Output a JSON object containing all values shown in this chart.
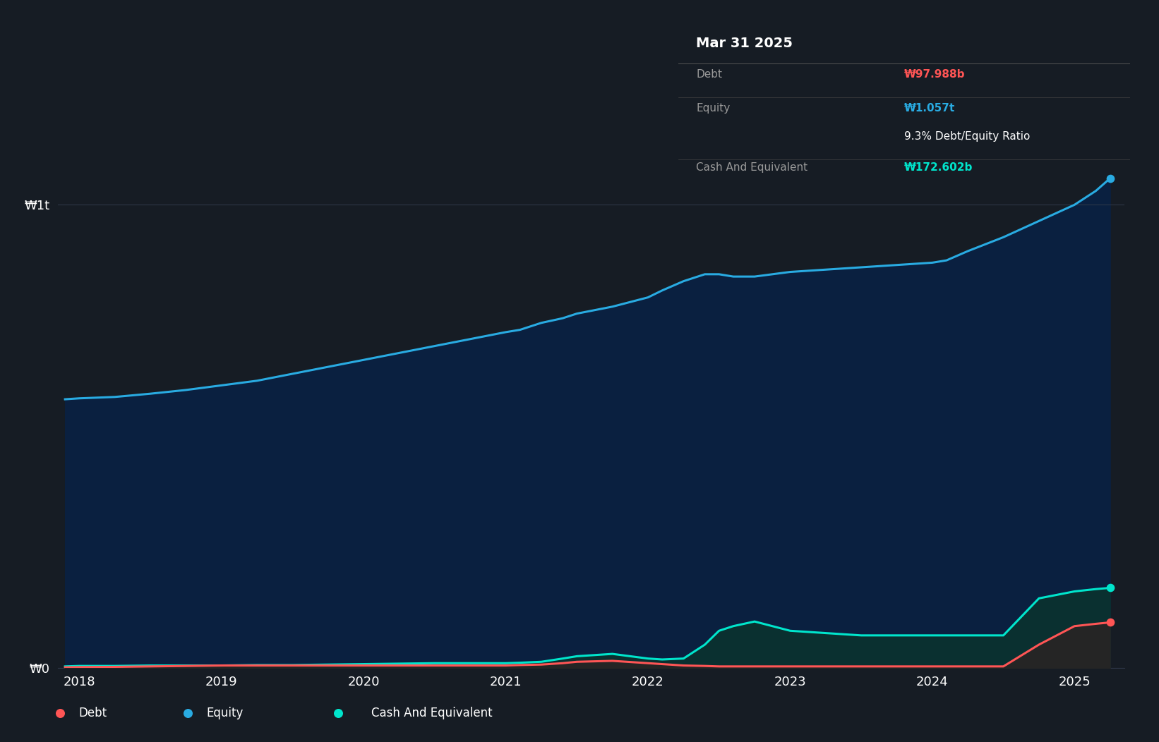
{
  "bg_color": "#161c24",
  "plot_bg_color": "#161c24",
  "tooltip_bg": "#000000",
  "grid_color": "#2d3748",
  "title_tooltip": "Mar 31 2025",
  "debt_label": "Debt",
  "equity_label": "Equity",
  "cash_label": "Cash And Equivalent",
  "debt_value": "₩97.988b",
  "equity_value": "₩1.057t",
  "ratio_text": "9.3% Debt/Equity Ratio",
  "cash_value": "₩172.602b",
  "debt_color": "#ff5555",
  "equity_color": "#29abe2",
  "cash_color": "#00e5cc",
  "equity_fill_color": "#0a2040",
  "cash_fill_color": "#0a3030",
  "debt_fill_color": "#252525",
  "ytick_labels": [
    "₩1t",
    "₩0"
  ],
  "xtick_labels": [
    "2018",
    "2019",
    "2020",
    "2021",
    "2022",
    "2023",
    "2024",
    "2025"
  ],
  "legend_label_debt": "Debt",
  "legend_label_equity": "Equity",
  "legend_label_cash": "Cash And Equivalent",
  "x_years": [
    2017.9,
    2018.0,
    2018.25,
    2018.5,
    2018.75,
    2019.0,
    2019.25,
    2019.5,
    2019.75,
    2020.0,
    2020.25,
    2020.5,
    2020.75,
    2021.0,
    2021.1,
    2021.25,
    2021.4,
    2021.5,
    2021.75,
    2022.0,
    2022.1,
    2022.25,
    2022.4,
    2022.5,
    2022.6,
    2022.75,
    2023.0,
    2023.25,
    2023.5,
    2023.75,
    2024.0,
    2024.1,
    2024.25,
    2024.5,
    2024.75,
    2025.0,
    2025.15,
    2025.25
  ],
  "equity_values": [
    580000000000.0,
    582000000000.0,
    585000000000.0,
    592000000000.0,
    600000000000.0,
    610000000000.0,
    620000000000.0,
    635000000000.0,
    650000000000.0,
    665000000000.0,
    680000000000.0,
    695000000000.0,
    710000000000.0,
    725000000000.0,
    730000000000.0,
    745000000000.0,
    755000000000.0,
    765000000000.0,
    780000000000.0,
    800000000000.0,
    815000000000.0,
    835000000000.0,
    850000000000.0,
    850000000000.0,
    845000000000.0,
    845000000000.0,
    855000000000.0,
    860000000000.0,
    865000000000.0,
    870000000000.0,
    875000000000.0,
    880000000000.0,
    900000000000.0,
    930000000000.0,
    965000000000.0,
    1000000000000.0,
    1030000000000.0,
    1057000000000.0
  ],
  "debt_values": [
    1000000000.0,
    1500000000.0,
    2000000000.0,
    3000000000.0,
    4000000000.0,
    5000000000.0,
    5000000000.0,
    5000000000.0,
    5000000000.0,
    5000000000.0,
    5000000000.0,
    5000000000.0,
    5000000000.0,
    5000000000.0,
    6000000000.0,
    7000000000.0,
    10000000000.0,
    13000000000.0,
    15000000000.0,
    10000000000.0,
    8000000000.0,
    5000000000.0,
    4000000000.0,
    3000000000.0,
    3000000000.0,
    3000000000.0,
    3000000000.0,
    3000000000.0,
    3000000000.0,
    3000000000.0,
    3000000000.0,
    3000000000.0,
    3000000000.0,
    3000000000.0,
    50000000000.0,
    90000000000.0,
    95000000000.0,
    97988000000.0
  ],
  "cash_values": [
    3000000000.0,
    4000000000.0,
    4000000000.0,
    5000000000.0,
    5000000000.0,
    5000000000.0,
    6000000000.0,
    6000000000.0,
    7000000000.0,
    8000000000.0,
    9000000000.0,
    10000000000.0,
    10000000000.0,
    10000000000.0,
    11000000000.0,
    13000000000.0,
    20000000000.0,
    25000000000.0,
    30000000000.0,
    20000000000.0,
    18000000000.0,
    20000000000.0,
    50000000000.0,
    80000000000.0,
    90000000000.0,
    100000000000.0,
    80000000000.0,
    75000000000.0,
    70000000000.0,
    70000000000.0,
    70000000000.0,
    70000000000.0,
    70000000000.0,
    70000000000.0,
    150000000000.0,
    165000000000.0,
    170000000000.0,
    172602000000.0
  ],
  "ylim_max": 1250000000000.0,
  "xlim_min": 2017.85,
  "xlim_max": 2025.35
}
